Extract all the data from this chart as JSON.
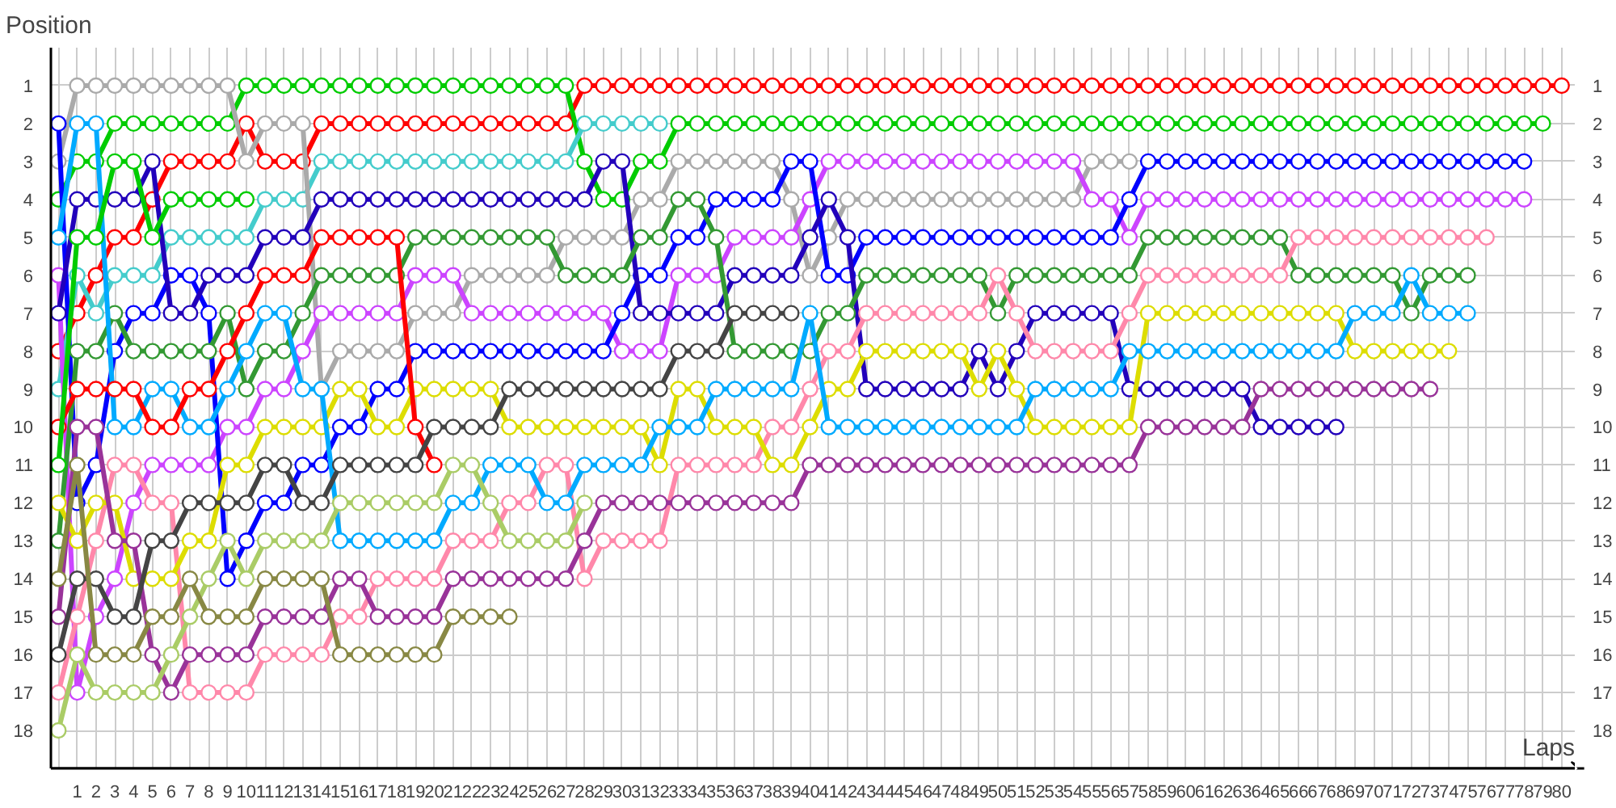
{
  "chart_data": {
    "type": "line",
    "xlabel": "Laps",
    "ylabel": "Position",
    "x": [
      0,
      1,
      2,
      3,
      4,
      5,
      6,
      7,
      8,
      9,
      10,
      11,
      12,
      13,
      14,
      15,
      16,
      17,
      18,
      19,
      20,
      21,
      22,
      23,
      24,
      25,
      26,
      27,
      28,
      29,
      30,
      31,
      32,
      33,
      34,
      35,
      36,
      37,
      38,
      39,
      40,
      41,
      42,
      43,
      44,
      45,
      46,
      47,
      48,
      49,
      50,
      51,
      52,
      53,
      54,
      55,
      56,
      57,
      58,
      59,
      60,
      61,
      62,
      63,
      64,
      65,
      66,
      67,
      68,
      69,
      70,
      71,
      72,
      73,
      74,
      75,
      76,
      77,
      78,
      79,
      80
    ],
    "xlim": [
      -0.4,
      80.7
    ],
    "xticks": [
      1,
      2,
      3,
      4,
      5,
      6,
      7,
      8,
      9,
      10,
      11,
      12,
      13,
      14,
      15,
      16,
      17,
      18,
      19,
      20,
      21,
      22,
      23,
      24,
      25,
      26,
      27,
      28,
      29,
      30,
      31,
      32,
      33,
      34,
      35,
      36,
      37,
      38,
      39,
      40,
      41,
      42,
      43,
      44,
      45,
      46,
      47,
      48,
      49,
      50,
      51,
      52,
      53,
      54,
      55,
      56,
      57,
      58,
      59,
      60,
      61,
      62,
      63,
      64,
      65,
      66,
      67,
      68,
      69,
      70,
      71,
      72,
      73,
      74,
      75,
      76,
      77,
      78,
      79,
      80
    ],
    "ylim": [
      19,
      0
    ],
    "yticks": [
      1,
      2,
      3,
      4,
      5,
      6,
      7,
      8,
      9,
      10,
      11,
      12,
      13,
      14,
      15,
      16,
      17,
      18
    ],
    "y2lim": [
      19,
      0
    ],
    "y2ticks": [
      1,
      2,
      3,
      4,
      5,
      6,
      7,
      8,
      9,
      10,
      11,
      12,
      13,
      14,
      15,
      16,
      17,
      18
    ],
    "grid": true,
    "marker": "circle",
    "line_style": "solid",
    "series": [
      {
        "color": "#ff0000",
        "values": [
          8,
          7,
          6,
          5,
          5,
          4,
          3,
          3,
          3,
          3,
          2,
          3,
          3,
          3,
          2,
          2,
          2,
          2,
          2,
          2,
          2,
          2,
          2,
          2,
          2,
          2,
          2,
          2,
          1,
          1,
          1,
          1,
          1,
          1,
          1,
          1,
          1,
          1,
          1,
          1,
          1,
          1,
          1,
          1,
          1,
          1,
          1,
          1,
          1,
          1,
          1,
          1,
          1,
          1,
          1,
          1,
          1,
          1,
          1,
          1,
          1,
          1,
          1,
          1,
          1,
          1,
          1,
          1,
          1,
          1,
          1,
          1,
          1,
          1,
          1,
          1,
          1,
          1,
          1,
          1,
          1
        ]
      },
      {
        "color": "#00cc00",
        "values": [
          4,
          3,
          3,
          2,
          2,
          2,
          2,
          2,
          2,
          2,
          1,
          1,
          1,
          1,
          1,
          1,
          1,
          1,
          1,
          1,
          1,
          1,
          1,
          1,
          1,
          1,
          1,
          1,
          3,
          4,
          4,
          3,
          3,
          2,
          2,
          2,
          2,
          2,
          2,
          2,
          2,
          2,
          2,
          2,
          2,
          2,
          2,
          2,
          2,
          2,
          2,
          2,
          2,
          2,
          2,
          2,
          2,
          2,
          2,
          2,
          2,
          2,
          2,
          2,
          2,
          2,
          2,
          2,
          2,
          2,
          2,
          2,
          2,
          2,
          2,
          2,
          2,
          2,
          2,
          2,
          null
        ]
      },
      {
        "color": "#44cccc",
        "values": [
          9,
          6,
          7,
          6,
          6,
          6,
          5,
          5,
          5,
          5,
          5,
          4,
          4,
          4,
          3,
          3,
          3,
          3,
          3,
          3,
          3,
          3,
          3,
          3,
          3,
          3,
          3,
          3,
          2,
          2,
          2,
          2,
          2,
          null,
          null,
          null,
          null,
          null,
          null,
          null,
          null,
          null,
          null,
          null,
          null,
          null,
          null,
          null,
          null,
          null,
          null,
          null,
          null,
          null,
          null,
          null,
          null,
          null,
          null,
          null,
          null,
          null,
          null,
          null,
          null,
          null,
          null,
          null,
          null,
          null,
          null,
          null,
          null,
          null,
          null,
          null,
          null,
          null,
          null,
          null,
          null
        ]
      },
      {
        "color": "#aaaaaa",
        "values": [
          3,
          1,
          1,
          1,
          1,
          1,
          1,
          1,
          1,
          1,
          3,
          2,
          2,
          2,
          9,
          8,
          8,
          8,
          8,
          7,
          7,
          7,
          6,
          6,
          6,
          6,
          6,
          5,
          5,
          5,
          5,
          4,
          4,
          3,
          3,
          3,
          3,
          3,
          3,
          4,
          6,
          5,
          4,
          4,
          4,
          4,
          4,
          4,
          4,
          4,
          4,
          4,
          4,
          4,
          4,
          3,
          3,
          3,
          null,
          null,
          null,
          null,
          null,
          null,
          null,
          null,
          null,
          null,
          null,
          null,
          null,
          null,
          null,
          null,
          null,
          null,
          null,
          null,
          null,
          null,
          null
        ]
      },
      {
        "color": "#cc44ff",
        "values": [
          6,
          17,
          15,
          14,
          12,
          11,
          11,
          11,
          11,
          10,
          10,
          9,
          9,
          8,
          7,
          7,
          7,
          7,
          7,
          6,
          6,
          6,
          7,
          7,
          7,
          7,
          7,
          7,
          7,
          7,
          8,
          8,
          8,
          6,
          6,
          6,
          5,
          5,
          5,
          5,
          4,
          3,
          3,
          3,
          3,
          3,
          3,
          3,
          3,
          3,
          3,
          3,
          3,
          3,
          3,
          4,
          4,
          5,
          4,
          4,
          4,
          4,
          4,
          4,
          4,
          4,
          4,
          4,
          4,
          4,
          4,
          4,
          4,
          4,
          4,
          4,
          4,
          4,
          4,
          null,
          null
        ]
      },
      {
        "color": "#0000ff",
        "values": [
          2,
          12,
          11,
          8,
          7,
          7,
          6,
          6,
          7,
          14,
          13,
          12,
          12,
          11,
          11,
          10,
          10,
          9,
          9,
          8,
          8,
          8,
          8,
          8,
          8,
          8,
          8,
          8,
          8,
          8,
          7,
          6,
          6,
          5,
          5,
          4,
          4,
          4,
          4,
          3,
          3,
          6,
          6,
          5,
          5,
          5,
          5,
          5,
          5,
          5,
          5,
          5,
          5,
          5,
          5,
          5,
          5,
          4,
          3,
          3,
          3,
          3,
          3,
          3,
          3,
          3,
          3,
          3,
          3,
          3,
          3,
          3,
          3,
          3,
          3,
          3,
          3,
          3,
          3,
          null,
          null
        ]
      },
      {
        "color": "#2200bb",
        "values": [
          7,
          4,
          4,
          4,
          4,
          3,
          7,
          7,
          6,
          6,
          6,
          5,
          5,
          5,
          4,
          4,
          4,
          4,
          4,
          4,
          4,
          4,
          4,
          4,
          4,
          4,
          4,
          4,
          4,
          3,
          3,
          7,
          7,
          7,
          7,
          7,
          6,
          6,
          6,
          6,
          5,
          4,
          5,
          9,
          9,
          9,
          9,
          9,
          9,
          8,
          9,
          8,
          7,
          7,
          7,
          7,
          7,
          9,
          9,
          9,
          9,
          9,
          9,
          9,
          10,
          10,
          10,
          10,
          10,
          null,
          null,
          null,
          null,
          null,
          null,
          null,
          null,
          null,
          null,
          null,
          null
        ]
      },
      {
        "color": "#339933",
        "values": [
          13,
          8,
          8,
          7,
          8,
          8,
          8,
          8,
          8,
          7,
          9,
          8,
          8,
          7,
          6,
          6,
          6,
          6,
          6,
          5,
          5,
          5,
          5,
          5,
          5,
          5,
          5,
          6,
          6,
          6,
          6,
          5,
          5,
          4,
          4,
          5,
          8,
          8,
          8,
          8,
          8,
          7,
          7,
          6,
          6,
          6,
          6,
          6,
          6,
          6,
          7,
          6,
          6,
          6,
          6,
          6,
          6,
          6,
          5,
          5,
          5,
          5,
          5,
          5,
          5,
          5,
          6,
          6,
          6,
          6,
          6,
          6,
          7,
          6,
          6,
          6,
          null,
          null,
          null,
          null,
          null
        ]
      },
      {
        "color": "#ff88aa",
        "values": [
          17,
          15,
          13,
          11,
          11,
          12,
          12,
          17,
          17,
          17,
          17,
          16,
          16,
          16,
          16,
          15,
          15,
          14,
          14,
          14,
          14,
          13,
          13,
          13,
          12,
          12,
          11,
          11,
          14,
          13,
          13,
          13,
          13,
          11,
          11,
          11,
          11,
          11,
          10,
          10,
          9,
          8,
          8,
          7,
          7,
          7,
          7,
          7,
          7,
          7,
          6,
          7,
          8,
          8,
          8,
          8,
          8,
          7,
          6,
          6,
          6,
          6,
          6,
          6,
          6,
          6,
          5,
          5,
          5,
          5,
          5,
          5,
          5,
          5,
          5,
          5,
          5,
          null,
          null,
          null,
          null
        ]
      },
      {
        "color": "#dddd00",
        "values": [
          12,
          13,
          12,
          12,
          14,
          14,
          14,
          13,
          13,
          11,
          11,
          10,
          10,
          10,
          10,
          9,
          9,
          10,
          10,
          9,
          9,
          9,
          9,
          9,
          10,
          10,
          10,
          10,
          10,
          10,
          10,
          10,
          11,
          9,
          9,
          10,
          10,
          10,
          11,
          11,
          10,
          9,
          9,
          8,
          8,
          8,
          8,
          8,
          8,
          9,
          8,
          9,
          10,
          10,
          10,
          10,
          10,
          10,
          7,
          7,
          7,
          7,
          7,
          7,
          7,
          7,
          7,
          7,
          7,
          8,
          8,
          8,
          8,
          8,
          8,
          null,
          null,
          null,
          null,
          null,
          null
        ]
      },
      {
        "color": "#00aaff",
        "values": [
          5,
          2,
          2,
          10,
          10,
          9,
          9,
          10,
          10,
          9,
          8,
          7,
          7,
          9,
          9,
          13,
          13,
          13,
          13,
          13,
          13,
          12,
          12,
          11,
          11,
          11,
          12,
          12,
          11,
          11,
          11,
          11,
          10,
          10,
          10,
          9,
          9,
          9,
          9,
          9,
          7,
          10,
          10,
          10,
          10,
          10,
          10,
          10,
          10,
          10,
          10,
          10,
          9,
          9,
          9,
          9,
          9,
          8,
          8,
          8,
          8,
          8,
          8,
          8,
          8,
          8,
          8,
          8,
          8,
          7,
          7,
          7,
          6,
          7,
          7,
          7,
          null,
          null,
          null,
          null,
          null
        ]
      },
      {
        "color": "#993399",
        "values": [
          15,
          10,
          10,
          13,
          13,
          16,
          17,
          16,
          16,
          16,
          16,
          15,
          15,
          15,
          15,
          14,
          14,
          15,
          15,
          15,
          15,
          14,
          14,
          14,
          14,
          14,
          14,
          14,
          13,
          12,
          12,
          12,
          12,
          12,
          12,
          12,
          12,
          12,
          12,
          12,
          11,
          11,
          11,
          11,
          11,
          11,
          11,
          11,
          11,
          11,
          11,
          11,
          11,
          11,
          11,
          11,
          11,
          11,
          10,
          10,
          10,
          10,
          10,
          10,
          9,
          9,
          9,
          9,
          9,
          9,
          9,
          9,
          9,
          9,
          null,
          null,
          null,
          null,
          null,
          null,
          null
        ]
      },
      {
        "color": "#ff0000",
        "values": [
          10,
          9,
          9,
          9,
          9,
          10,
          10,
          9,
          9,
          8,
          7,
          6,
          6,
          6,
          5,
          5,
          5,
          5,
          5,
          10,
          11,
          null,
          null,
          null,
          null,
          null,
          null,
          null,
          null,
          null,
          null,
          null,
          null,
          null,
          null,
          null,
          null,
          null,
          null,
          null,
          null,
          null,
          null,
          null,
          null,
          null,
          null,
          null,
          null,
          null,
          null,
          null,
          null,
          null,
          null,
          null,
          null,
          null,
          null,
          null,
          null,
          null,
          null,
          null,
          null,
          null,
          null,
          null,
          null,
          null,
          null,
          null,
          null,
          null,
          null,
          null,
          null,
          null,
          null,
          null,
          null
        ]
      },
      {
        "color": "#00cc00",
        "values": [
          11,
          5,
          5,
          3,
          3,
          5,
          4,
          4,
          4,
          4,
          4,
          null,
          null,
          null,
          null,
          null,
          null,
          null,
          null,
          null,
          null,
          null,
          null,
          null,
          null,
          null,
          null,
          null,
          null,
          null,
          null,
          null,
          null,
          null,
          null,
          null,
          null,
          null,
          null,
          null,
          null,
          null,
          null,
          null,
          null,
          null,
          null,
          null,
          null,
          null,
          null,
          null,
          null,
          null,
          null,
          null,
          null,
          null,
          null,
          null,
          null,
          null,
          null,
          null,
          null,
          null,
          null,
          null,
          null,
          null,
          null,
          null,
          null,
          null,
          null,
          null,
          null,
          null,
          null,
          null,
          null
        ]
      },
      {
        "color": "#444444",
        "values": [
          16,
          14,
          14,
          15,
          15,
          13,
          13,
          12,
          12,
          12,
          12,
          11,
          11,
          12,
          12,
          11,
          11,
          11,
          11,
          11,
          10,
          10,
          10,
          10,
          9,
          9,
          9,
          9,
          9,
          9,
          9,
          9,
          9,
          8,
          8,
          8,
          7,
          7,
          7,
          7,
          null,
          null,
          null,
          null,
          null,
          null,
          null,
          null,
          null,
          null,
          null,
          null,
          null,
          null,
          null,
          null,
          null,
          null,
          null,
          null,
          null,
          null,
          null,
          null,
          null,
          null,
          null,
          null,
          null,
          null,
          null,
          null,
          null,
          null,
          null,
          null,
          null,
          null,
          null,
          null,
          null
        ]
      },
      {
        "color": "#aacc66",
        "values": [
          18,
          16,
          17,
          17,
          17,
          17,
          16,
          15,
          14,
          13,
          14,
          13,
          13,
          13,
          13,
          12,
          12,
          12,
          12,
          12,
          12,
          11,
          11,
          12,
          13,
          13,
          13,
          13,
          12,
          null,
          null,
          null,
          null,
          null,
          null,
          null,
          null,
          null,
          null,
          null,
          null,
          null,
          null,
          null,
          null,
          null,
          null,
          null,
          null,
          null,
          null,
          null,
          null,
          null,
          null,
          null,
          null,
          null,
          null,
          null,
          null,
          null,
          null,
          null,
          null,
          null,
          null,
          null,
          null,
          null,
          null,
          null,
          null,
          null,
          null,
          null,
          null,
          null,
          null,
          null,
          null
        ]
      },
      {
        "color": "#888844",
        "values": [
          14,
          11,
          16,
          16,
          16,
          15,
          15,
          14,
          15,
          15,
          15,
          14,
          14,
          14,
          14,
          16,
          16,
          16,
          16,
          16,
          16,
          15,
          15,
          15,
          15,
          null,
          null,
          null,
          null,
          null,
          null,
          null,
          null,
          null,
          null,
          null,
          null,
          null,
          null,
          null,
          null,
          null,
          null,
          null,
          null,
          null,
          null,
          null,
          null,
          null,
          null,
          null,
          null,
          null,
          null,
          null,
          null,
          null,
          null,
          null,
          null,
          null,
          null,
          null,
          null,
          null,
          null,
          null,
          null,
          null,
          null,
          null,
          null,
          null,
          null,
          null,
          null,
          null,
          null,
          null,
          null
        ]
      }
    ]
  }
}
